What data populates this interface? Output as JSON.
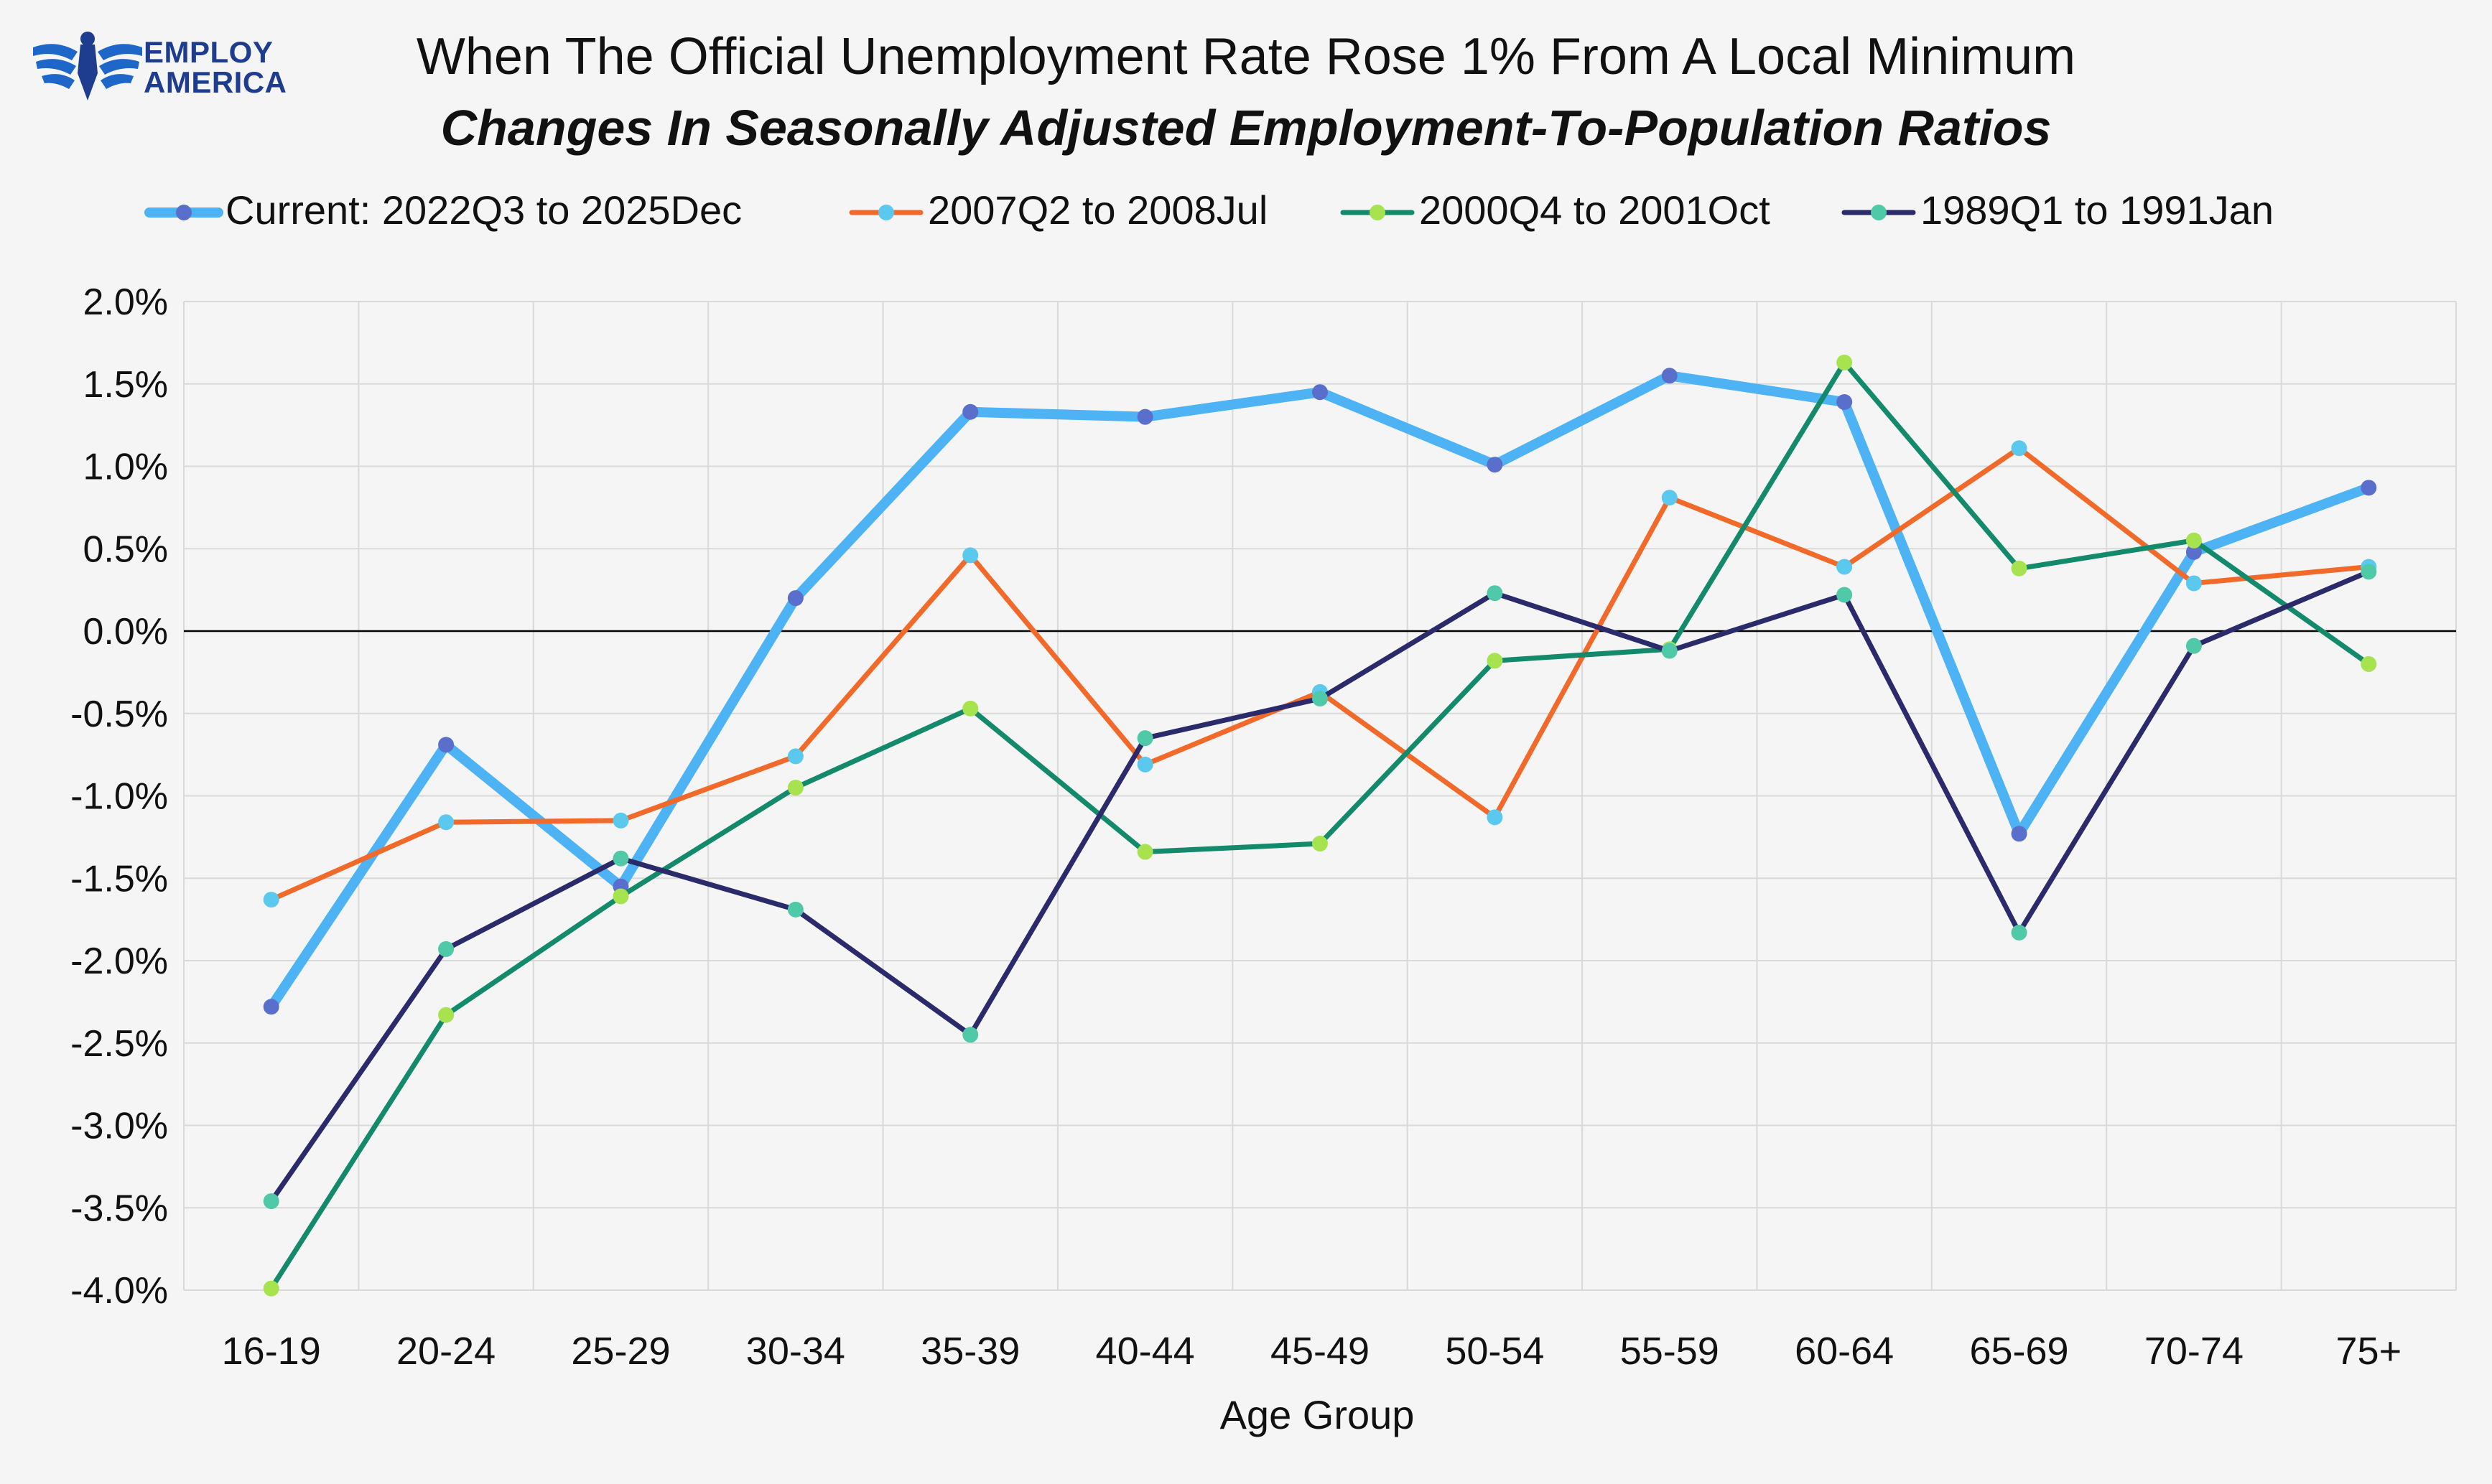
{
  "logo": {
    "line1": "EMPLOY",
    "line2": "AMERICA"
  },
  "colors": {
    "background": "#f5f5f5",
    "grid": "#d9d9d9",
    "zero_line": "#000000"
  },
  "chart_data": {
    "type": "line",
    "title": "When The Official Unemployment Rate Rose 1% From A Local Minimum",
    "subtitle": "Changes In Seasonally Adjusted Employment-To-Population Ratios",
    "xlabel": "Age Group",
    "ylabel": "",
    "categories": [
      "16-19",
      "20-24",
      "25-29",
      "30-34",
      "35-39",
      "40-44",
      "45-49",
      "50-54",
      "55-59",
      "60-64",
      "65-69",
      "70-74",
      "75+"
    ],
    "ylim": [
      -4.0,
      2.0
    ],
    "yticks": [
      2.0,
      1.5,
      1.0,
      0.5,
      0.0,
      -0.5,
      -1.0,
      -1.5,
      -2.0,
      -2.5,
      -3.0,
      -3.5,
      -4.0
    ],
    "ytick_labels": [
      "2.0%",
      "1.5%",
      "1.0%",
      "0.5%",
      "0.0%",
      "-0.5%",
      "-1.0%",
      "-1.5%",
      "-2.0%",
      "-2.5%",
      "-3.0%",
      "-3.5%",
      "-4.0%"
    ],
    "legend_position": "top",
    "grid": true,
    "series": [
      {
        "name": "Current: 2022Q3 to 2025Dec",
        "line_color": "#4db3f5",
        "marker_color": "#5a6fcc",
        "width": "thick",
        "values": [
          -2.28,
          -0.69,
          -1.55,
          0.2,
          1.33,
          1.3,
          1.45,
          1.01,
          1.55,
          1.39,
          -1.23,
          0.48,
          0.87
        ]
      },
      {
        "name": "2007Q2 to 2008Jul",
        "line_color": "#f26a2a",
        "marker_color": "#5bc8ee",
        "width": "normal",
        "values": [
          -1.63,
          -1.16,
          -1.15,
          -0.76,
          0.46,
          -0.81,
          -0.37,
          -1.13,
          0.81,
          0.39,
          1.11,
          0.29,
          0.39
        ]
      },
      {
        "name": "2000Q4 to 2001Oct",
        "line_color": "#138a6b",
        "marker_color": "#a6e34f",
        "width": "normal",
        "values": [
          -3.99,
          -2.33,
          -1.61,
          -0.95,
          -0.47,
          -1.34,
          -1.29,
          -0.18,
          -0.11,
          1.63,
          0.38,
          0.55,
          -0.2
        ]
      },
      {
        "name": "1989Q1 to 1991Jan",
        "line_color": "#2b2a6b",
        "marker_color": "#4fc9a8",
        "width": "normal",
        "values": [
          -3.46,
          -1.93,
          -1.38,
          -1.69,
          -2.45,
          -0.65,
          -0.41,
          0.23,
          -0.12,
          0.22,
          -1.83,
          -0.09,
          0.36
        ]
      }
    ]
  }
}
